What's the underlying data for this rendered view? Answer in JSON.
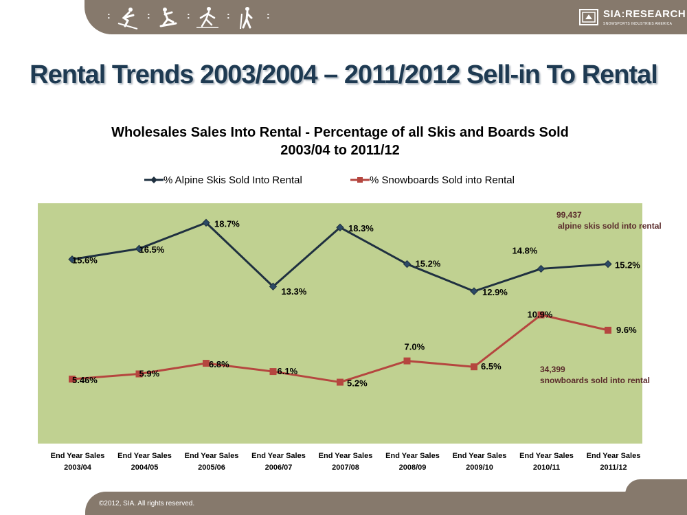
{
  "slide": {
    "title": "Rental Trends 2003/2004 – 2011/2012 Sell-in To Rental",
    "footer": "©2012, SIA. All rights reserved.",
    "logo_text": "SIA:RESEARCH",
    "logo_subtext": "SNOWSPORTS INDUSTRIES AMERICA",
    "header_icons": [
      "freestyle-skier-icon",
      "snowboarder-icon",
      "cross-country-skier-icon",
      "hiker-icon"
    ]
  },
  "chart_data": {
    "type": "line",
    "title_line1": "Wholesales Sales Into Rental - Percentage of all Skis and Boards Sold",
    "title_line2": "2003/04 to 2011/12",
    "categories": [
      [
        "End Year Sales",
        "2003/04"
      ],
      [
        "End Year Sales",
        "2004/05"
      ],
      [
        "End Year Sales",
        "2005/06"
      ],
      [
        "End Year Sales",
        "2006/07"
      ],
      [
        "End Year Sales",
        "2007/08"
      ],
      [
        "End Year Sales",
        "2008/09"
      ],
      [
        "End Year Sales",
        "2009/10"
      ],
      [
        "End Year Sales",
        "2010/11"
      ],
      [
        "End Year Sales",
        "2011/12"
      ]
    ],
    "ylim": [
      0,
      21
    ],
    "grid": false,
    "legend_position": "top",
    "series": [
      {
        "name": "% Alpine Skis Sold Into Rental",
        "color": "#1f3040",
        "marker": "diamond",
        "values": [
          15.6,
          16.5,
          18.7,
          13.3,
          18.3,
          15.2,
          12.9,
          14.8,
          15.2
        ],
        "labels": [
          "15.6%",
          "16.5%",
          "18.7%",
          "13.3%",
          "18.3%",
          "15.2%",
          "12.9%",
          "14.8%",
          "15.2%"
        ]
      },
      {
        "name": "% Snowboards Sold into Rental",
        "color": "#b5463f",
        "marker": "square",
        "values": [
          5.46,
          5.9,
          6.8,
          6.1,
          5.2,
          7.0,
          6.5,
          10.9,
          9.6
        ],
        "labels": [
          "5.46%",
          "5.9%",
          "6.8%",
          "6.1%",
          "5.2%",
          "7.0%",
          "6.5%",
          "10.9%",
          "9.6%"
        ]
      }
    ],
    "annotations": {
      "alpine_count": "99,437",
      "alpine_text": "alpine skis sold into rental",
      "snow_count": "34,399",
      "snow_text": "snowboards sold into rental"
    }
  }
}
